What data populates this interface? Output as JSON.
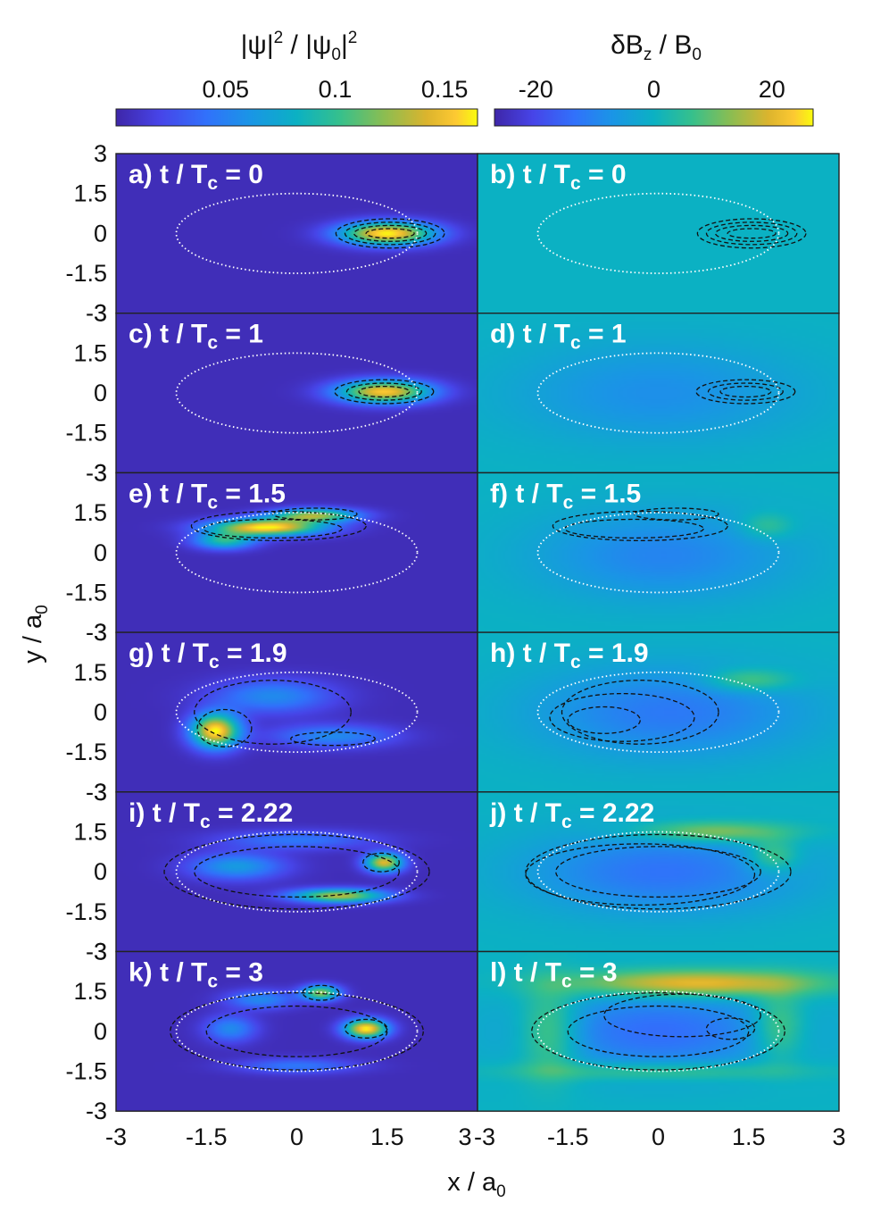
{
  "chart_data": {
    "type": "heatmap",
    "layout": "6 rows x 2 columns of panels sharing axes",
    "xlabel": "x / a",
    "xlabel_sub": "0",
    "ylabel": "y / a",
    "ylabel_sub": "0",
    "xlim": [
      -3,
      3
    ],
    "ylim": [
      -3,
      3
    ],
    "x_ticks_left": [
      "-3",
      "-1.5",
      "0",
      "1.5",
      "3"
    ],
    "x_ticks_right": [
      "-3",
      "-1.5",
      "0",
      "1.5",
      "3"
    ],
    "y_ticks": [
      "3",
      "1.5",
      "0",
      "-1.5",
      "-3"
    ],
    "colorbars": [
      {
        "title_parts": [
          "|ψ|",
          "2",
          " / |ψ",
          "0",
          "|",
          "2"
        ],
        "ticks": [
          "0.05",
          "0.1",
          "0.15"
        ],
        "tick_values": [
          0.05,
          0.1,
          0.15
        ],
        "range": [
          0.0,
          0.165
        ],
        "colormap": "parula"
      },
      {
        "title_parts": [
          "δB",
          "z",
          " / B",
          "0"
        ],
        "ticks": [
          "-20",
          "0",
          "20"
        ],
        "tick_values": [
          -20,
          0,
          20
        ],
        "range": [
          -27,
          27
        ],
        "colormap": "parula"
      }
    ],
    "overlay_ellipse": {
      "center": [
        0,
        0
      ],
      "semi_axes": [
        2.0,
        1.5
      ],
      "style": "white dotted"
    },
    "panels": [
      {
        "id": "a",
        "letter": "a)",
        "time": "0",
        "column": "density",
        "blobs": [
          {
            "x": 1.5,
            "y": 0.0,
            "sx": 0.55,
            "sy": 0.3,
            "amp": 0.16
          }
        ],
        "contours": [
          [
            {
              "x": 1.55,
              "y": 0.0,
              "rx": 0.4,
              "ry": 0.18
            },
            {
              "x": 1.55,
              "y": 0.0,
              "rx": 0.6,
              "ry": 0.3
            },
            {
              "x": 1.55,
              "y": 0.0,
              "rx": 0.75,
              "ry": 0.42
            },
            {
              "x": 1.55,
              "y": 0.0,
              "rx": 0.9,
              "ry": 0.55
            }
          ]
        ]
      },
      {
        "id": "b",
        "letter": "b)",
        "time": "0",
        "column": "field",
        "blobs": [],
        "contours": [
          [
            {
              "x": 1.55,
              "y": 0.0,
              "rx": 0.4,
              "ry": 0.18
            },
            {
              "x": 1.55,
              "y": 0.0,
              "rx": 0.6,
              "ry": 0.3
            },
            {
              "x": 1.55,
              "y": 0.0,
              "rx": 0.75,
              "ry": 0.42
            },
            {
              "x": 1.55,
              "y": 0.0,
              "rx": 0.9,
              "ry": 0.55
            }
          ]
        ]
      },
      {
        "id": "c",
        "letter": "c)",
        "time": "1",
        "column": "density",
        "blobs": [
          {
            "x": 1.45,
            "y": 0.05,
            "sx": 0.55,
            "sy": 0.3,
            "amp": 0.15
          }
        ],
        "contours": [
          [
            {
              "x": 1.45,
              "y": 0.05,
              "rx": 0.42,
              "ry": 0.2
            },
            {
              "x": 1.45,
              "y": 0.05,
              "rx": 0.62,
              "ry": 0.32
            },
            {
              "x": 1.45,
              "y": 0.05,
              "rx": 0.82,
              "ry": 0.45
            }
          ]
        ]
      },
      {
        "id": "d",
        "letter": "d)",
        "time": "1",
        "column": "field",
        "blobs": [
          {
            "x": 0.0,
            "y": 0.0,
            "sx": 1.7,
            "sy": 1.3,
            "amp": -8
          }
        ],
        "contours": [
          [
            {
              "x": 1.45,
              "y": 0.05,
              "rx": 0.42,
              "ry": 0.2
            },
            {
              "x": 1.45,
              "y": 0.05,
              "rx": 0.62,
              "ry": 0.32
            },
            {
              "x": 1.45,
              "y": 0.05,
              "rx": 0.82,
              "ry": 0.45
            }
          ]
        ]
      },
      {
        "id": "e",
        "letter": "e)",
        "time": "1.5",
        "column": "density",
        "blobs": [
          {
            "x": -0.5,
            "y": 0.95,
            "sx": 0.65,
            "sy": 0.22,
            "amp": 0.16
          },
          {
            "x": 0.3,
            "y": 1.4,
            "sx": 0.5,
            "sy": 0.18,
            "amp": 0.12
          },
          {
            "x": -1.2,
            "y": 0.45,
            "sx": 0.35,
            "sy": 0.22,
            "amp": 0.09
          }
        ],
        "contours": [
          [
            {
              "x": -0.4,
              "y": 0.9,
              "rx": 1.15,
              "ry": 0.35
            },
            {
              "x": -0.3,
              "y": 1.0,
              "rx": 1.45,
              "ry": 0.55
            },
            {
              "x": 0.3,
              "y": 1.45,
              "rx": 0.7,
              "ry": 0.22
            }
          ]
        ]
      },
      {
        "id": "f",
        "letter": "f)",
        "time": "1.5",
        "column": "field",
        "blobs": [
          {
            "x": 0.1,
            "y": -0.1,
            "sx": 1.5,
            "sy": 1.2,
            "amp": -10
          },
          {
            "x": 1.8,
            "y": 1.0,
            "sx": 0.3,
            "sy": 0.35,
            "amp": 8
          }
        ],
        "contours": [
          [
            {
              "x": -0.4,
              "y": 0.9,
              "rx": 1.15,
              "ry": 0.35
            },
            {
              "x": -0.3,
              "y": 1.0,
              "rx": 1.45,
              "ry": 0.55
            },
            {
              "x": 0.3,
              "y": 1.45,
              "rx": 0.7,
              "ry": 0.22
            }
          ]
        ]
      },
      {
        "id": "g",
        "letter": "g)",
        "time": "1.9",
        "column": "density",
        "blobs": [
          {
            "x": -1.35,
            "y": -0.7,
            "sx": 0.28,
            "sy": 0.45,
            "amp": 0.16
          },
          {
            "x": -0.4,
            "y": 0.6,
            "sx": 0.7,
            "sy": 0.45,
            "amp": 0.05
          },
          {
            "x": 0.6,
            "y": -0.9,
            "sx": 0.7,
            "sy": 0.3,
            "amp": 0.05
          }
        ],
        "contours": [
          [
            {
              "x": -0.4,
              "y": 0.0,
              "rx": 1.3,
              "ry": 1.2
            },
            {
              "x": -1.2,
              "y": -0.6,
              "rx": 0.45,
              "ry": 0.7
            },
            {
              "x": 0.6,
              "y": -1.0,
              "rx": 0.7,
              "ry": 0.25
            }
          ]
        ]
      },
      {
        "id": "h",
        "letter": "h)",
        "time": "1.9",
        "column": "field",
        "blobs": [
          {
            "x": 0.2,
            "y": 0.0,
            "sx": 1.6,
            "sy": 1.2,
            "amp": -12
          },
          {
            "x": 1.5,
            "y": 1.2,
            "sx": 0.5,
            "sy": 0.3,
            "amp": 12
          }
        ],
        "contours": [
          [
            {
              "x": -0.3,
              "y": 0.0,
              "rx": 1.3,
              "ry": 1.2
            },
            {
              "x": -0.6,
              "y": -0.2,
              "rx": 1.2,
              "ry": 0.9
            },
            {
              "x": -0.9,
              "y": -0.3,
              "rx": 0.6,
              "ry": 0.5
            }
          ]
        ]
      },
      {
        "id": "i",
        "letter": "i)",
        "time": "2.22",
        "column": "density",
        "blobs": [
          {
            "x": 0.7,
            "y": -0.9,
            "sx": 0.55,
            "sy": 0.18,
            "amp": 0.13
          },
          {
            "x": 1.45,
            "y": 0.35,
            "sx": 0.22,
            "sy": 0.25,
            "amp": 0.14
          },
          {
            "x": -1.0,
            "y": 0.2,
            "sx": 0.55,
            "sy": 0.35,
            "amp": 0.06
          },
          {
            "x": 0.0,
            "y": 1.2,
            "sx": 0.9,
            "sy": 0.25,
            "amp": 0.04
          }
        ],
        "contours": [
          [
            {
              "x": 0.0,
              "y": 0.0,
              "rx": 2.2,
              "ry": 1.4
            },
            {
              "x": 0.0,
              "y": 0.0,
              "rx": 1.7,
              "ry": 0.95
            },
            {
              "x": 1.4,
              "y": 0.35,
              "rx": 0.3,
              "ry": 0.35
            }
          ]
        ]
      },
      {
        "id": "j",
        "letter": "j)",
        "time": "2.22",
        "column": "field",
        "blobs": [
          {
            "x": 0.1,
            "y": 0.0,
            "sx": 1.6,
            "sy": 1.1,
            "amp": -13
          },
          {
            "x": 0.9,
            "y": 1.5,
            "sx": 0.9,
            "sy": 0.28,
            "amp": 16
          },
          {
            "x": 1.9,
            "y": 0.6,
            "sx": 0.3,
            "sy": 0.45,
            "amp": 12
          }
        ],
        "contours": [
          [
            {
              "x": 0.0,
              "y": 0.0,
              "rx": 2.2,
              "ry": 1.4
            },
            {
              "x": 0.0,
              "y": 0.0,
              "rx": 1.7,
              "ry": 0.95
            },
            {
              "x": -0.3,
              "y": -0.1,
              "rx": 1.9,
              "ry": 1.15
            }
          ]
        ]
      },
      {
        "id": "k",
        "letter": "k)",
        "time": "3",
        "column": "density",
        "blobs": [
          {
            "x": 1.15,
            "y": 0.1,
            "sx": 0.25,
            "sy": 0.25,
            "amp": 0.16
          },
          {
            "x": 0.4,
            "y": 1.45,
            "sx": 0.22,
            "sy": 0.2,
            "amp": 0.12
          },
          {
            "x": -0.6,
            "y": 1.2,
            "sx": 0.4,
            "sy": 0.25,
            "amp": 0.05
          },
          {
            "x": 0.0,
            "y": -1.3,
            "sx": 0.7,
            "sy": 0.2,
            "amp": 0.04
          },
          {
            "x": -1.1,
            "y": 0.1,
            "sx": 0.3,
            "sy": 0.35,
            "amp": 0.05
          }
        ],
        "contours": [
          [
            {
              "x": 0.0,
              "y": 0.0,
              "rx": 2.1,
              "ry": 1.45
            },
            {
              "x": 0.0,
              "y": 0.0,
              "rx": 1.5,
              "ry": 0.95
            },
            {
              "x": 1.15,
              "y": 0.1,
              "rx": 0.35,
              "ry": 0.35
            },
            {
              "x": 0.4,
              "y": 1.45,
              "rx": 0.3,
              "ry": 0.28
            }
          ]
        ]
      },
      {
        "id": "l",
        "letter": "l)",
        "time": "3",
        "column": "field",
        "blobs": [
          {
            "x": 0.0,
            "y": 0.0,
            "sx": 1.5,
            "sy": 1.1,
            "amp": -14
          },
          {
            "x": 0.6,
            "y": 1.8,
            "sx": 1.4,
            "sy": 0.35,
            "amp": 24
          },
          {
            "x": -1.8,
            "y": 0.0,
            "sx": 0.35,
            "sy": 1.2,
            "amp": 13
          },
          {
            "x": 2.0,
            "y": 0.2,
            "sx": 0.3,
            "sy": 0.9,
            "amp": 12
          },
          {
            "x": 0.0,
            "y": -1.5,
            "sx": 1.6,
            "sy": 0.25,
            "amp": 10
          }
        ],
        "contours": [
          [
            {
              "x": 0.0,
              "y": 0.0,
              "rx": 2.1,
              "ry": 1.45
            },
            {
              "x": 0.0,
              "y": 0.0,
              "rx": 1.5,
              "ry": 0.95
            },
            {
              "x": 0.4,
              "y": 0.6,
              "rx": 1.3,
              "ry": 0.8
            },
            {
              "x": 1.2,
              "y": 0.1,
              "rx": 0.4,
              "ry": 0.4
            }
          ]
        ]
      }
    ]
  }
}
